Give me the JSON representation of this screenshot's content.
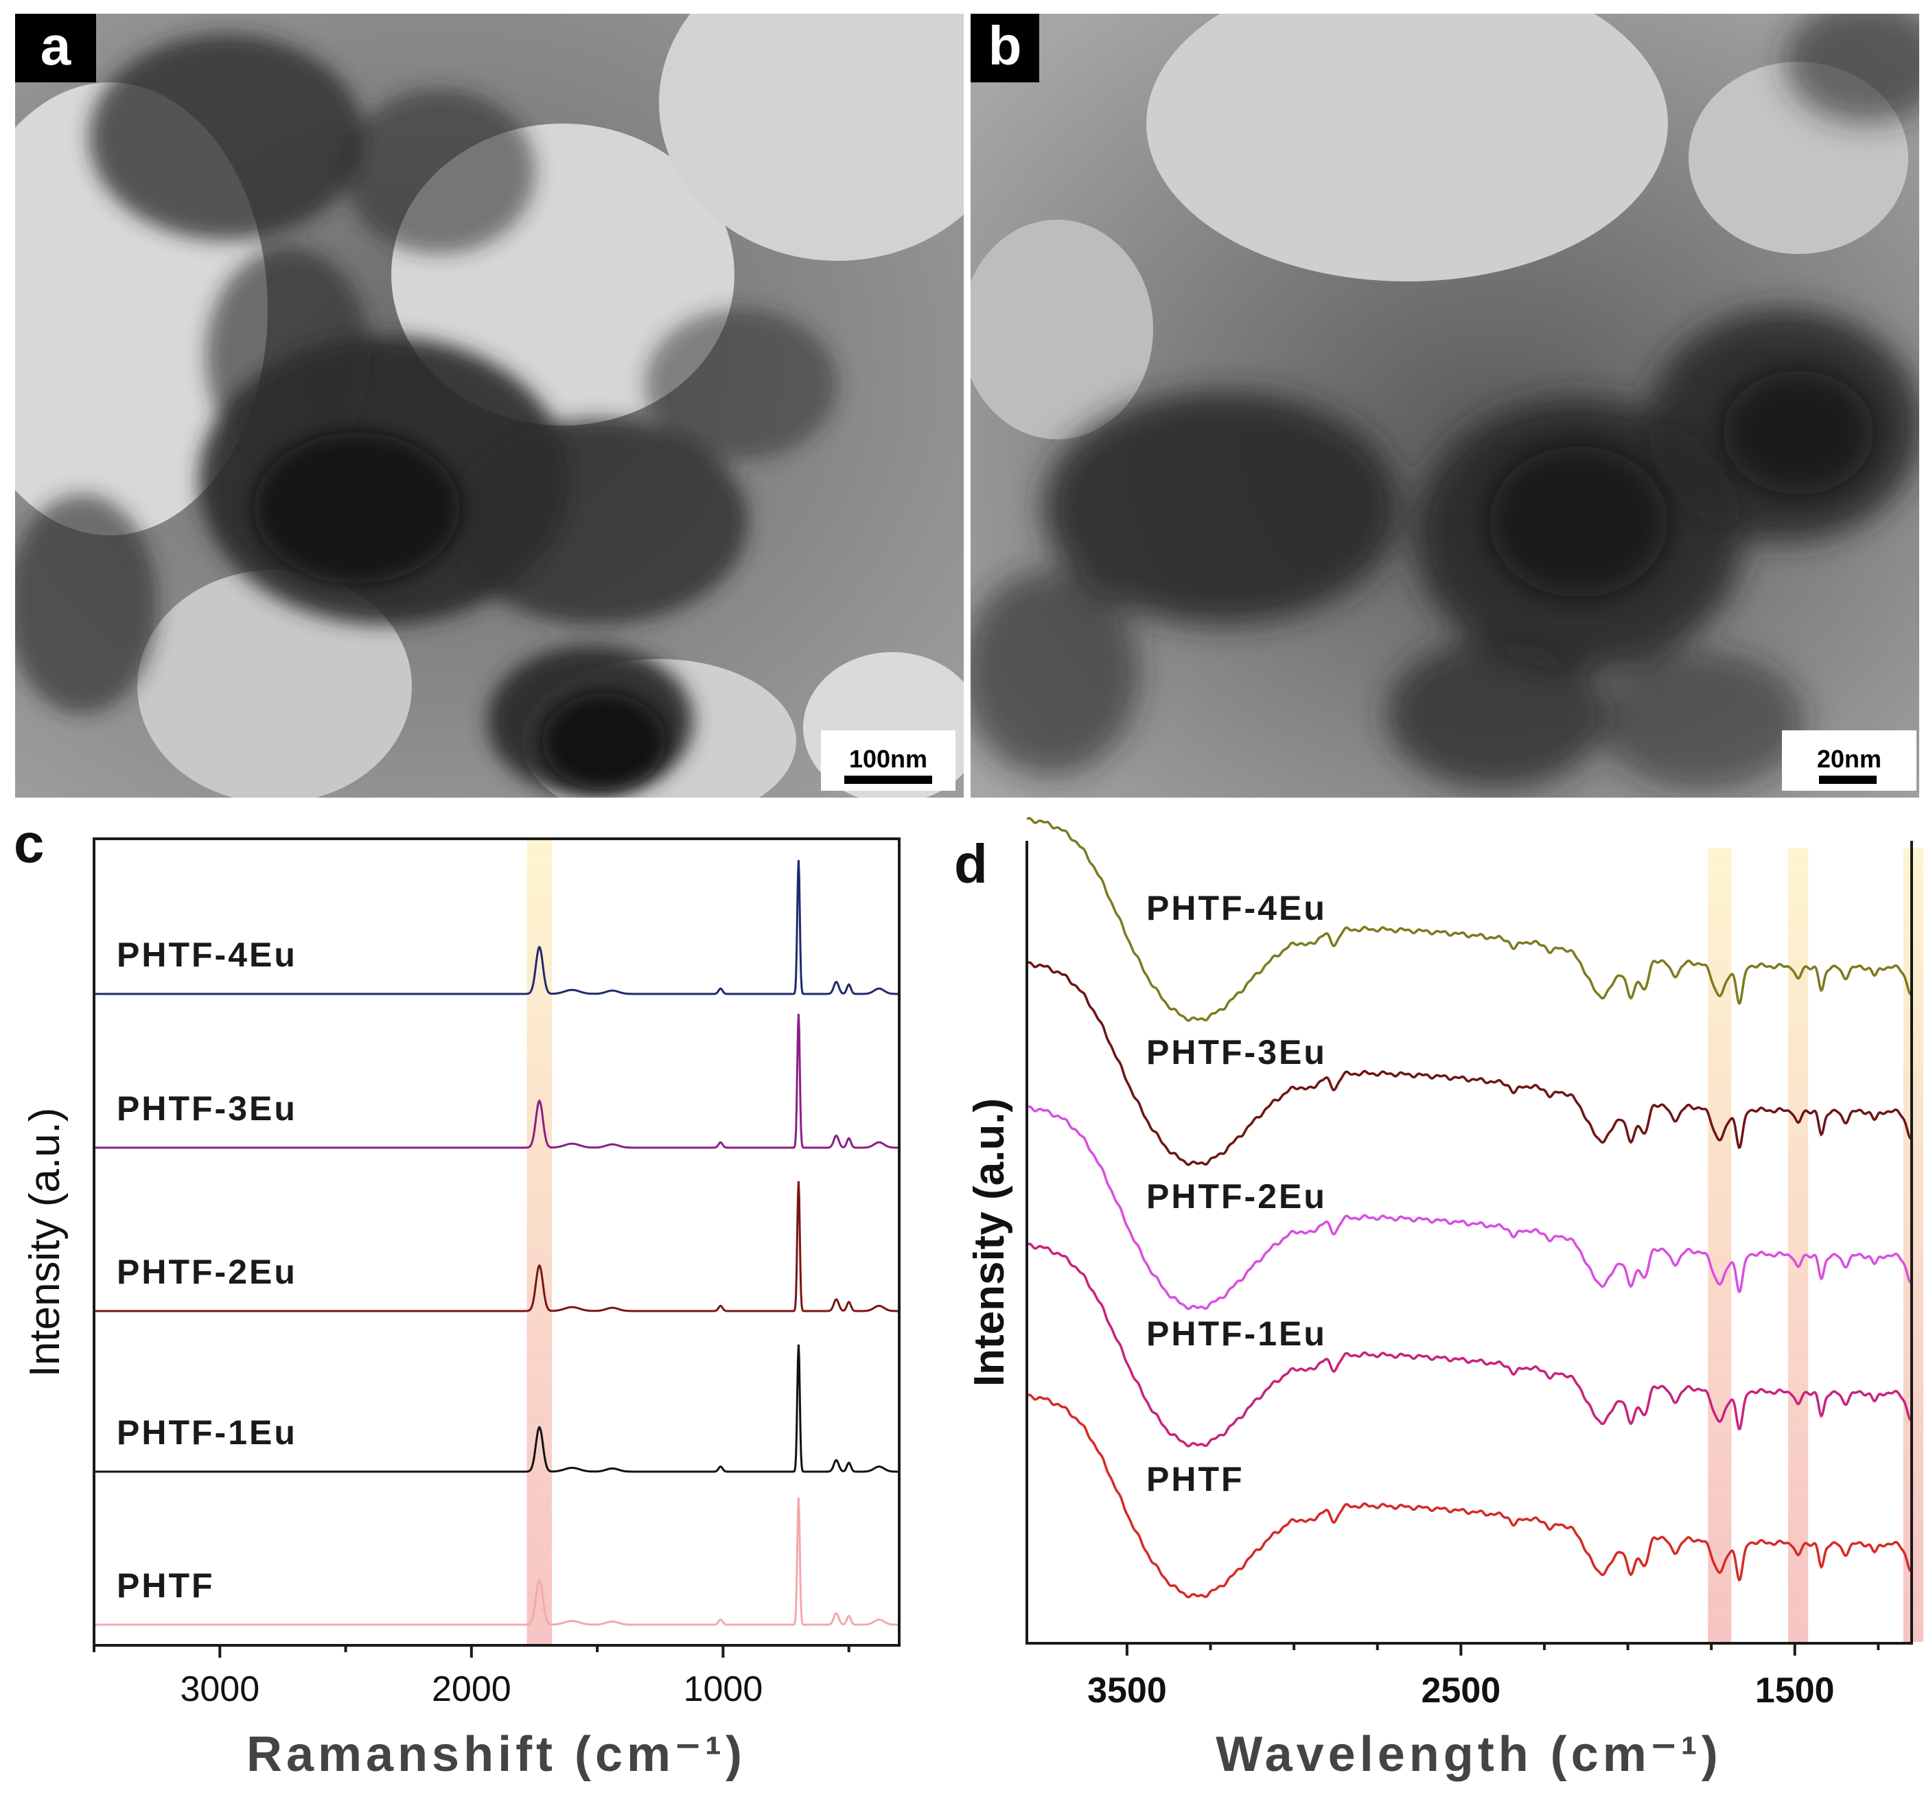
{
  "panels": {
    "a": {
      "label": "a",
      "scale_bar": "100nm"
    },
    "b": {
      "label": "b",
      "scale_bar": "20nm"
    },
    "c": {
      "label": "c"
    },
    "d": {
      "label": "d"
    }
  },
  "colors": {
    "PHTF-4Eu_c": "#1f2a6e",
    "PHTF-3Eu_c": "#8a1f86",
    "PHTF-2Eu_c": "#7a1414",
    "PHTF-1Eu_c": "#111111",
    "PHTF_c": "#f2a9ae",
    "PHTF-4Eu_d": "#7e7a1e",
    "PHTF-3Eu_d": "#6e1414",
    "PHTF-2Eu_d": "#d94ee0",
    "PHTF-1Eu_d": "#c8227e",
    "PHTF_d": "#d62a26",
    "highlight_top": "#fdf3c8",
    "highlight_bottom": "#f4b5b5"
  },
  "chart_data": [
    {
      "panel": "c",
      "type": "line",
      "xlabel": "Ramanshift (cm⁻¹)",
      "ylabel": "Intensity (a.u.)",
      "xlim": [
        3500,
        300
      ],
      "xticks": [
        3000,
        2000,
        1000
      ],
      "tick_labels": [
        "3000",
        "2000",
        "1000"
      ],
      "highlight_bands": [
        [
          1680,
          1780
        ]
      ],
      "peaks": [
        [
          1730,
          0.35,
          14
        ],
        [
          1600,
          0.03,
          30
        ],
        [
          1440,
          0.025,
          25
        ],
        [
          1010,
          0.04,
          8
        ],
        [
          700,
          1.0,
          5
        ],
        [
          550,
          0.09,
          10
        ],
        [
          500,
          0.07,
          8
        ],
        [
          380,
          0.04,
          20
        ]
      ],
      "series": [
        {
          "name": "PHTF-4Eu",
          "color_key": "PHTF-4Eu_c",
          "offset": 4,
          "peak_scale": 1.0
        },
        {
          "name": "PHTF-3Eu",
          "color_key": "PHTF-3Eu_c",
          "offset": 3,
          "peak_scale": 1.0
        },
        {
          "name": "PHTF-2Eu",
          "color_key": "PHTF-2Eu_c",
          "offset": 2,
          "peak_scale": 0.97
        },
        {
          "name": "PHTF-1Eu",
          "color_key": "PHTF-1Eu_c",
          "offset": 1,
          "peak_scale": 0.95
        },
        {
          "name": "PHTF",
          "color_key": "PHTF_c",
          "offset": 0,
          "peak_scale": 0.95
        }
      ]
    },
    {
      "panel": "d",
      "type": "line",
      "xlabel": "Wavelength (cm⁻¹)",
      "ylabel": "Intensity (a.u.)",
      "xlim": [
        3800,
        1150
      ],
      "xticks": [
        3500,
        2500,
        1500
      ],
      "tick_labels": [
        "3500",
        "2500",
        "1500"
      ],
      "highlight_bands": [
        [
          1760,
          1690
        ],
        [
          1520,
          1460
        ],
        [
          1175,
          1115
        ]
      ],
      "series": [
        {
          "name": "PHTF-4Eu",
          "color_key": "PHTF-4Eu_d",
          "offset": 4
        },
        {
          "name": "PHTF-3Eu",
          "color_key": "PHTF-3Eu_d",
          "offset": 3
        },
        {
          "name": "PHTF-2Eu",
          "color_key": "PHTF-2Eu_d",
          "offset": 2
        },
        {
          "name": "PHTF-1Eu",
          "color_key": "PHTF-1Eu_d",
          "offset": 1
        },
        {
          "name": "PHTF",
          "color_key": "PHTF_d",
          "offset": 0
        }
      ]
    }
  ]
}
